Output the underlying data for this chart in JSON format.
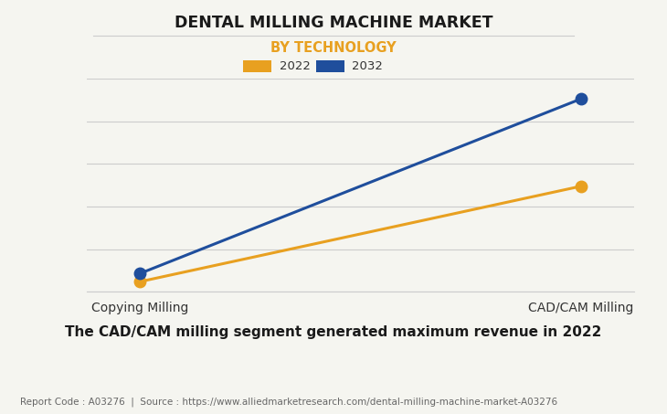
{
  "title": "DENTAL MILLING MACHINE MARKET",
  "subtitle": "BY TECHNOLOGY",
  "subtitle_color": "#E8A020",
  "categories": [
    "Copying Milling",
    "CAD/CAM Milling"
  ],
  "series": [
    {
      "label": "2022",
      "values": [
        0.05,
        0.52
      ],
      "color": "#E8A020",
      "marker": "o",
      "linewidth": 2.2,
      "markersize": 9
    },
    {
      "label": "2032",
      "values": [
        0.09,
        0.95
      ],
      "color": "#1F4E9C",
      "marker": "o",
      "linewidth": 2.2,
      "markersize": 9
    }
  ],
  "ylim": [
    0,
    1.05
  ],
  "xlim": [
    -0.12,
    1.12
  ],
  "background_color": "#f5f5f0",
  "plot_bg_color": "#f5f5f0",
  "grid_color": "#cccccc",
  "caption": "The CAD/CAM milling segment generated maximum revenue in 2022",
  "footer": "Report Code : A03276  |  Source : https://www.alliedmarketresearch.com/dental-milling-machine-market-A03276",
  "legend_color_2022": "#E8A020",
  "legend_color_2032": "#1F4E9C",
  "title_fontsize": 12.5,
  "subtitle_fontsize": 10.5,
  "caption_fontsize": 11,
  "footer_fontsize": 7.5,
  "tick_fontsize": 10,
  "legend_fontsize": 9.5,
  "n_gridlines": 6
}
